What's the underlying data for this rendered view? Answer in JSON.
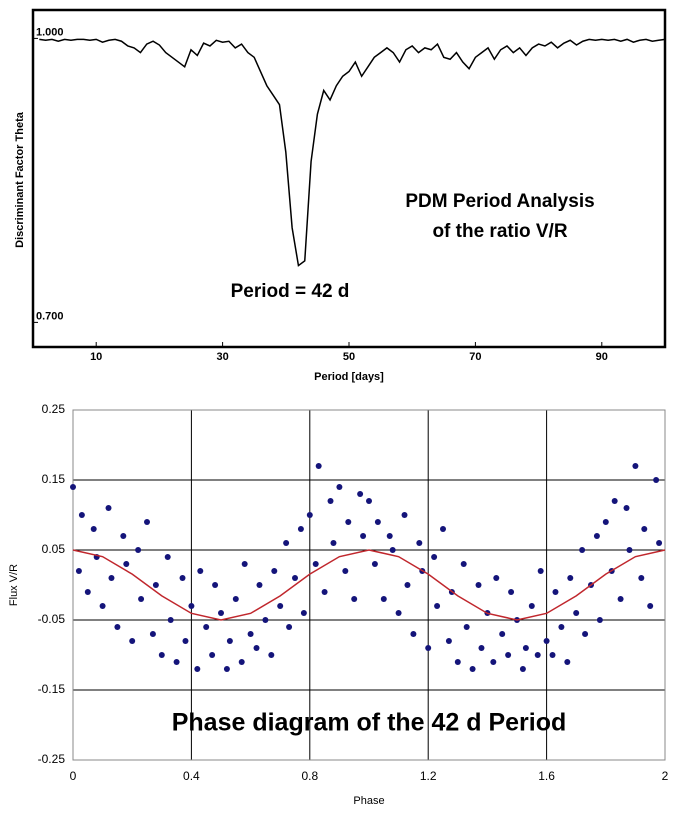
{
  "chart_data": [
    {
      "type": "line",
      "annotations": [
        "PDM Period Analysis",
        "of the ratio V/R",
        "Period = 42 d"
      ],
      "x_label": "Period [days]",
      "y_label": "Discriminant Factor Theta",
      "xlim": [
        0,
        100
      ],
      "xticks": [
        10,
        30,
        50,
        70,
        90
      ],
      "ylim": [
        0.674,
        1.03
      ],
      "yticks": [
        {
          "value": 1.0,
          "label": "1.000"
        },
        {
          "value": 0.7,
          "label": "0.700"
        }
      ],
      "grid": false,
      "series": [
        {
          "color": "#000000",
          "x": [
            1,
            2,
            3,
            4,
            5,
            6,
            7,
            8,
            9,
            10,
            11,
            12,
            13,
            14,
            15,
            16,
            17,
            18,
            19,
            20,
            21,
            22,
            23,
            24,
            25,
            26,
            27,
            28,
            29,
            30,
            31,
            32,
            33,
            34,
            35,
            36,
            37,
            38,
            39,
            40,
            41,
            42,
            43,
            44,
            45,
            46,
            47,
            48,
            49,
            50,
            51,
            52,
            53,
            54,
            55,
            56,
            57,
            58,
            59,
            60,
            61,
            62,
            63,
            64,
            65,
            66,
            67,
            68,
            69,
            70,
            71,
            72,
            73,
            74,
            75,
            76,
            77,
            78,
            79,
            80,
            81,
            82,
            83,
            84,
            85,
            86,
            87,
            88,
            89,
            90,
            91,
            92,
            93,
            94,
            95,
            96,
            97,
            98,
            99,
            100
          ],
          "values": [
            0.999,
            0.998,
            0.999,
            0.997,
            0.999,
            0.998,
            0.999,
            0.999,
            0.998,
            0.999,
            0.996,
            0.998,
            0.999,
            0.997,
            0.992,
            0.99,
            0.985,
            0.994,
            0.997,
            0.993,
            0.985,
            0.98,
            0.975,
            0.97,
            0.988,
            0.982,
            0.995,
            0.992,
            0.998,
            0.996,
            0.997,
            0.99,
            0.994,
            0.985,
            0.98,
            0.965,
            0.95,
            0.94,
            0.93,
            0.88,
            0.8,
            0.76,
            0.765,
            0.87,
            0.92,
            0.945,
            0.935,
            0.95,
            0.96,
            0.965,
            0.975,
            0.96,
            0.97,
            0.98,
            0.985,
            0.99,
            0.985,
            0.975,
            0.988,
            0.992,
            0.985,
            0.99,
            0.988,
            0.994,
            0.98,
            0.978,
            0.985,
            0.975,
            0.968,
            0.98,
            0.985,
            0.99,
            0.978,
            0.988,
            0.992,
            0.985,
            0.99,
            0.982,
            0.99,
            0.994,
            0.992,
            0.996,
            0.99,
            0.995,
            0.998,
            0.993,
            0.997,
            0.999,
            0.998,
            0.999,
            0.998,
            0.999,
            0.997,
            0.999,
            0.996,
            0.998,
            0.999,
            0.997,
            0.998,
            0.999
          ]
        }
      ]
    },
    {
      "type": "scatter",
      "annotations": [
        "Phase diagram of the 42 d Period"
      ],
      "x_label": "Phase",
      "y_label": "Flux V/R",
      "xlim": [
        0,
        2
      ],
      "xticks": [
        0,
        0.4,
        0.8,
        1.2,
        1.6,
        2
      ],
      "ylim": [
        -0.25,
        0.25
      ],
      "yticks": [
        -0.25,
        -0.15,
        -0.05,
        0.05,
        0.15,
        0.25
      ],
      "grid": true,
      "series": [
        {
          "color": "#14147a",
          "x": [
            0.0,
            0.02,
            0.03,
            0.05,
            0.07,
            0.08,
            0.1,
            0.12,
            0.13,
            0.15,
            0.17,
            0.18,
            0.2,
            0.22,
            0.23,
            0.25,
            0.27,
            0.28,
            0.3,
            0.32,
            0.33,
            0.35,
            0.37,
            0.38,
            0.4,
            0.42,
            0.43,
            0.45,
            0.47,
            0.48,
            0.5,
            0.52,
            0.53,
            0.55,
            0.57,
            0.58,
            0.6,
            0.62,
            0.63,
            0.65,
            0.67,
            0.68,
            0.7,
            0.72,
            0.73,
            0.75,
            0.77,
            0.78,
            0.8,
            0.82,
            0.83,
            0.85,
            0.87,
            0.88,
            0.9,
            0.92,
            0.93,
            0.95,
            0.97,
            0.98,
            1.0,
            1.02,
            1.03,
            1.05,
            1.07,
            1.08,
            1.1,
            1.12,
            1.13,
            1.15,
            1.17,
            1.18,
            1.2,
            1.22,
            1.23,
            1.25,
            1.27,
            1.28,
            1.3,
            1.32,
            1.33,
            1.35,
            1.37,
            1.38,
            1.4,
            1.42,
            1.43,
            1.45,
            1.47,
            1.48,
            1.5,
            1.52,
            1.53,
            1.55,
            1.57,
            1.58,
            1.6,
            1.62,
            1.63,
            1.65,
            1.67,
            1.68,
            1.7,
            1.72,
            1.73,
            1.75,
            1.77,
            1.78,
            1.8,
            1.82,
            1.83,
            1.85,
            1.87,
            1.88,
            1.9,
            1.92,
            1.93,
            1.95,
            1.97,
            1.98
          ],
          "values": [
            0.14,
            0.02,
            0.1,
            -0.01,
            0.08,
            0.04,
            -0.03,
            0.11,
            0.01,
            -0.06,
            0.07,
            0.03,
            -0.08,
            0.05,
            -0.02,
            0.09,
            -0.07,
            0.0,
            -0.1,
            0.04,
            -0.05,
            -0.11,
            0.01,
            -0.08,
            -0.03,
            -0.12,
            0.02,
            -0.06,
            -0.1,
            0.0,
            -0.04,
            -0.12,
            -0.08,
            -0.02,
            -0.11,
            0.03,
            -0.07,
            -0.09,
            0.0,
            -0.05,
            -0.1,
            0.02,
            -0.03,
            0.06,
            -0.06,
            0.01,
            0.08,
            -0.04,
            0.1,
            0.03,
            0.17,
            -0.01,
            0.12,
            0.06,
            0.14,
            0.02,
            0.09,
            -0.02,
            0.13,
            0.07,
            0.12,
            0.03,
            0.09,
            -0.02,
            0.07,
            0.05,
            -0.04,
            0.1,
            0.0,
            -0.07,
            0.06,
            0.02,
            -0.09,
            0.04,
            -0.03,
            0.08,
            -0.08,
            -0.01,
            -0.11,
            0.03,
            -0.06,
            -0.12,
            0.0,
            -0.09,
            -0.04,
            -0.11,
            0.01,
            -0.07,
            -0.1,
            -0.01,
            -0.05,
            -0.12,
            -0.09,
            -0.03,
            -0.1,
            0.02,
            -0.08,
            -0.1,
            -0.01,
            -0.06,
            -0.11,
            0.01,
            -0.04,
            0.05,
            -0.07,
            0.0,
            0.07,
            -0.05,
            0.09,
            0.02,
            0.12,
            -0.02,
            0.11,
            0.05,
            0.17,
            0.01,
            0.08,
            -0.03,
            0.15,
            0.06
          ]
        }
      ],
      "fit": {
        "color": "#c0272d",
        "x": [
          0,
          0.1,
          0.2,
          0.3,
          0.4,
          0.5,
          0.6,
          0.7,
          0.8,
          0.9,
          1,
          1.1,
          1.2,
          1.3,
          1.4,
          1.5,
          1.6,
          1.7,
          1.8,
          1.9,
          2
        ],
        "values": [
          0.05,
          0.0405,
          0.0155,
          -0.0155,
          -0.0405,
          -0.05,
          -0.0405,
          -0.0155,
          0.0155,
          0.0405,
          0.05,
          0.0405,
          0.0155,
          -0.0155,
          -0.0405,
          -0.05,
          -0.0405,
          -0.0155,
          0.0155,
          0.0405,
          0.05
        ]
      }
    }
  ]
}
